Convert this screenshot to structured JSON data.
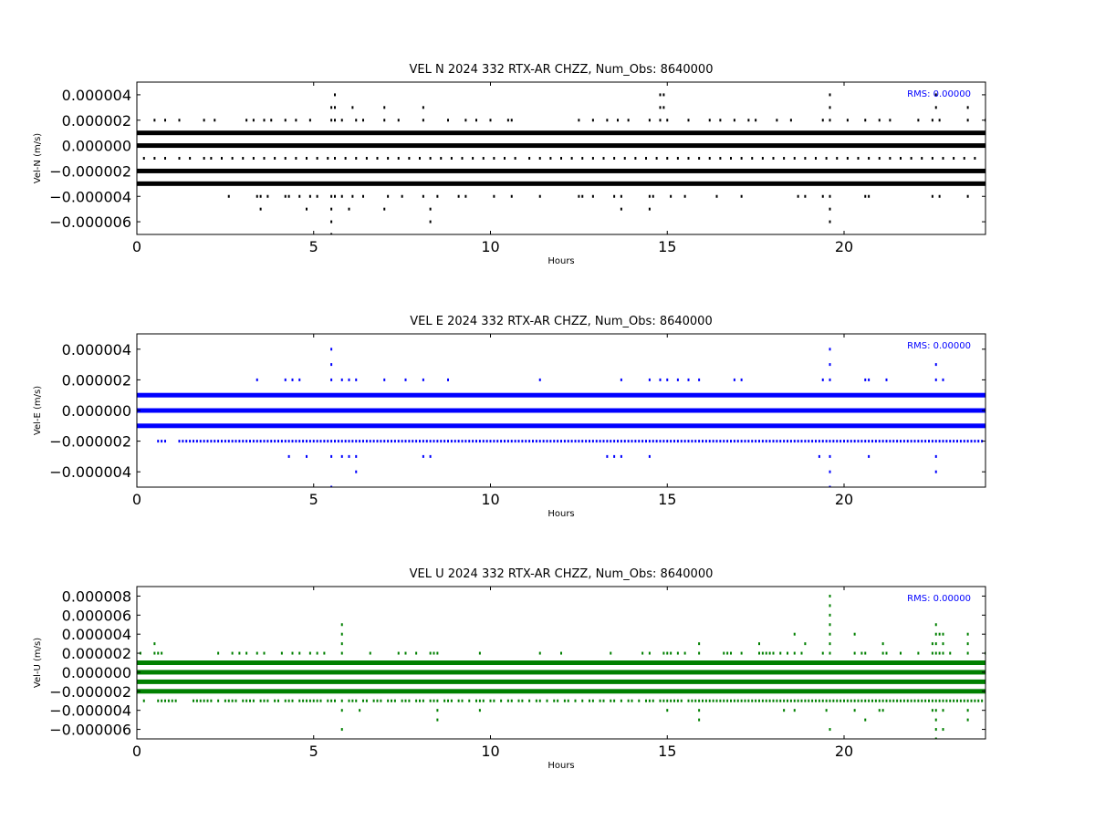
{
  "chart_data": [
    {
      "type": "scatter",
      "title": "VEL N 2024 332 RTX-AR  CHZZ, Num_Obs: 8640000",
      "xlabel": "Hours",
      "ylabel": "Vel-N (m/s)",
      "xlim": [
        0,
        24
      ],
      "ylim": [
        -7e-06,
        5e-06
      ],
      "xticks": [
        "0",
        "5",
        "10",
        "15",
        "20"
      ],
      "yticks": [
        "0.000004",
        "0.000002",
        "0.000000",
        "−0.000002",
        "−0.000004",
        "−0.000006"
      ],
      "color": "#000000",
      "rms_label": "RMS:  0.00000",
      "rms_color": "#0000ff",
      "grid": false,
      "dense_levels": [
        1e-06,
        0.0,
        -2e-06,
        -3e-06
      ],
      "sparse_levels": [
        {
          "y": -1e-06,
          "x": [
            0.2,
            0.5,
            0.8,
            1.2,
            1.5,
            1.9,
            2.1,
            2.4,
            2.7,
            3.0,
            3.3,
            3.6,
            3.9,
            4.2,
            4.5,
            4.8,
            5.1,
            5.4,
            5.6,
            5.9,
            6.2,
            6.5,
            6.8,
            7.1,
            7.4,
            7.7,
            8.0,
            8.3,
            8.6,
            8.9,
            9.2,
            9.5,
            9.8,
            10.1,
            10.4,
            10.7,
            11.1,
            11.4,
            11.7,
            12.0,
            12.3,
            12.6,
            12.9,
            13.2,
            13.5,
            13.8,
            14.1,
            14.4,
            14.7,
            15.0,
            15.3,
            15.6,
            15.9,
            16.2,
            16.5,
            16.8,
            17.1,
            17.4,
            17.7,
            18.0,
            18.3,
            18.6,
            18.9,
            19.2,
            19.5,
            19.8,
            20.1,
            20.4,
            20.7,
            21.0,
            21.3,
            21.6,
            21.9,
            22.2,
            22.5,
            22.8,
            23.1,
            23.4,
            23.7
          ]
        },
        {
          "y": 2e-06,
          "x": [
            0.5,
            0.8,
            1.2,
            1.9,
            2.2,
            3.1,
            3.3,
            3.6,
            3.8,
            4.2,
            4.5,
            4.9,
            5.5,
            5.6,
            5.8,
            6.2,
            6.4,
            7.0,
            7.4,
            8.1,
            8.8,
            9.3,
            9.6,
            10.0,
            10.5,
            10.6,
            12.5,
            12.9,
            13.3,
            13.6,
            13.9,
            14.5,
            14.8,
            15.0,
            15.6,
            16.2,
            16.5,
            16.9,
            17.3,
            17.5,
            18.1,
            18.5,
            19.4,
            19.6,
            20.1,
            20.6,
            21.0,
            21.3,
            22.1,
            22.5,
            22.7,
            23.5,
            24.0
          ]
        },
        {
          "y": 3e-06,
          "x": [
            5.5,
            5.6,
            6.1,
            7.0,
            8.1,
            14.8,
            14.9,
            19.6,
            22.6,
            23.5
          ]
        },
        {
          "y": 4e-06,
          "x": [
            5.6,
            14.8,
            14.9,
            19.6,
            22.6
          ]
        },
        {
          "y": -4e-06,
          "x": [
            2.6,
            3.4,
            3.5,
            3.7,
            4.2,
            4.3,
            4.6,
            4.9,
            5.1,
            5.5,
            5.6,
            5.8,
            6.1,
            6.4,
            7.1,
            7.5,
            8.1,
            8.5,
            9.1,
            9.3,
            10.1,
            10.6,
            11.4,
            12.5,
            12.6,
            12.9,
            13.5,
            13.7,
            14.5,
            14.6,
            15.1,
            15.5,
            16.4,
            17.1,
            18.7,
            18.9,
            19.4,
            19.6,
            20.6,
            20.7,
            22.5,
            22.7,
            23.5
          ]
        },
        {
          "y": -5e-06,
          "x": [
            3.5,
            4.8,
            5.5,
            6.0,
            7.0,
            8.3,
            13.7,
            14.5,
            19.6
          ]
        },
        {
          "y": -6e-06,
          "x": [
            5.5,
            8.3,
            19.6
          ]
        },
        {
          "y": -7e-06,
          "x": [
            5.5
          ]
        }
      ]
    },
    {
      "type": "scatter",
      "title": "VEL E 2024 332 RTX-AR  CHZZ, Num_Obs: 8640000",
      "xlabel": "Hours",
      "ylabel": "Vel-E (m/s)",
      "xlim": [
        0,
        24
      ],
      "ylim": [
        -5e-06,
        5e-06
      ],
      "xticks": [
        "0",
        "5",
        "10",
        "15",
        "20"
      ],
      "yticks": [
        "0.000004",
        "0.000002",
        "0.000000",
        "−0.000002",
        "−0.000004"
      ],
      "color": "#0000ff",
      "rms_label": "RMS:  0.00000",
      "rms_color": "#0000ff",
      "grid": false,
      "dense_levels": [
        1e-06,
        0.0,
        -1e-06
      ],
      "sparse_levels": [
        {
          "y": -2e-06,
          "x": [
            0.6,
            0.7,
            0.8,
            1.2,
            1.3,
            1.4,
            1.5,
            1.6,
            1.7,
            1.8,
            1.9,
            2.0,
            2.1,
            2.2,
            2.3,
            2.4,
            2.5,
            2.6,
            2.7,
            2.8,
            2.9,
            3.0,
            3.1,
            3.2,
            3.3,
            3.4,
            3.5,
            3.6,
            3.7,
            3.8,
            3.9,
            4.0,
            4.1,
            4.2,
            4.3,
            4.4,
            4.5,
            4.6,
            4.7,
            4.8,
            4.9,
            5.0,
            5.1,
            5.2,
            5.3,
            5.4,
            5.5,
            5.6,
            5.7,
            5.8,
            5.9,
            6.0,
            6.1,
            6.2,
            6.3,
            6.4,
            6.5,
            6.6,
            6.7,
            6.8,
            6.9,
            7.0,
            7.1,
            7.2,
            7.3,
            7.4,
            7.5,
            7.6,
            7.7,
            7.8,
            7.9,
            8.0,
            8.1,
            8.2,
            8.3,
            8.4,
            8.5,
            8.6,
            8.7,
            8.8,
            8.9,
            9.0,
            9.1,
            9.2,
            9.3,
            9.4,
            9.5,
            9.6,
            9.7,
            9.8,
            9.9,
            10.0,
            10.1,
            10.2,
            10.3,
            10.4,
            10.5,
            10.6,
            10.7,
            10.8,
            10.9,
            11.0,
            11.1,
            11.2,
            11.3,
            11.4,
            11.5,
            11.6,
            11.7,
            11.8,
            11.9,
            12.0,
            12.1,
            12.2,
            12.3,
            12.4,
            12.5,
            12.6,
            12.7,
            12.8,
            12.9,
            13.0,
            13.1,
            13.2,
            13.3,
            13.4,
            13.5,
            13.6,
            13.7,
            13.8,
            13.9,
            14.0,
            14.1,
            14.2,
            14.3,
            14.4,
            14.5,
            14.6,
            14.7,
            14.8,
            14.9,
            15.0,
            15.1,
            15.2,
            15.3,
            15.4,
            15.5,
            15.6,
            15.7,
            15.8,
            15.9,
            16.0,
            16.1,
            16.2,
            16.3,
            16.4,
            16.5,
            16.6,
            16.7,
            16.8,
            16.9,
            17.0,
            17.1,
            17.2,
            17.3,
            17.4,
            17.5,
            17.6,
            17.7,
            17.8,
            17.9,
            18.0,
            18.1,
            18.2,
            18.3,
            18.4,
            18.5,
            18.6,
            18.7,
            18.8,
            18.9,
            19.0,
            19.1,
            19.2,
            19.3,
            19.4,
            19.5,
            19.6,
            19.7,
            19.8,
            19.9,
            20.0,
            20.1,
            20.2,
            20.3,
            20.4,
            20.5,
            20.6,
            20.7,
            20.8,
            20.9,
            21.0,
            21.1,
            21.2,
            21.3,
            21.4,
            21.5,
            21.6,
            21.7,
            21.8,
            21.9,
            22.0,
            22.1,
            22.2,
            22.3,
            22.4,
            22.5,
            22.6,
            22.7,
            22.8,
            22.9,
            23.0,
            23.1,
            23.2,
            23.3,
            23.4,
            23.5,
            23.6,
            23.7,
            23.8,
            23.9
          ]
        },
        {
          "y": 2e-06,
          "x": [
            3.4,
            4.2,
            4.4,
            4.6,
            5.5,
            5.8,
            6.0,
            6.2,
            7.0,
            7.6,
            8.1,
            8.8,
            11.4,
            13.7,
            14.5,
            14.8,
            15.0,
            15.3,
            15.6,
            15.9,
            16.9,
            17.1,
            19.4,
            19.6,
            20.6,
            20.7,
            21.2,
            22.6,
            22.8
          ]
        },
        {
          "y": 3e-06,
          "x": [
            5.5,
            19.6,
            22.6
          ]
        },
        {
          "y": 4e-06,
          "x": [
            5.5,
            19.6
          ]
        },
        {
          "y": -3e-06,
          "x": [
            4.3,
            4.8,
            5.5,
            5.8,
            6.0,
            6.2,
            8.1,
            8.3,
            13.3,
            13.5,
            13.7,
            14.5,
            19.3,
            19.6,
            20.7,
            22.6
          ]
        },
        {
          "y": -4e-06,
          "x": [
            6.2,
            19.6,
            22.6
          ]
        },
        {
          "y": -5e-06,
          "x": [
            5.5,
            19.6
          ]
        }
      ]
    },
    {
      "type": "scatter",
      "title": "VEL U 2024 332 RTX-AR  CHZZ, Num_Obs: 8640000",
      "xlabel": "Hours",
      "ylabel": "Vel-U (m/s)",
      "xlim": [
        0,
        24
      ],
      "ylim": [
        -7e-06,
        9e-06
      ],
      "xticks": [
        "0",
        "5",
        "10",
        "15",
        "20"
      ],
      "yticks": [
        "0.000008",
        "0.000006",
        "0.000004",
        "0.000002",
        "0.000000",
        "−0.000002",
        "−0.000004",
        "−0.000006"
      ],
      "color": "#008000",
      "rms_label": "RMS:  0.00000",
      "rms_color": "#0000ff",
      "grid": false,
      "dense_levels": [
        1e-06,
        0.0,
        -1e-06,
        -2e-06
      ],
      "sparse_levels": [
        {
          "y": -3e-06,
          "x": [
            0.2,
            0.6,
            0.7,
            0.8,
            0.9,
            1.0,
            1.1,
            1.6,
            1.7,
            1.8,
            1.9,
            2.0,
            2.1,
            2.3,
            2.5,
            2.6,
            2.7,
            2.8,
            3.0,
            3.1,
            3.2,
            3.3,
            3.5,
            3.6,
            3.7,
            3.9,
            4.0,
            4.2,
            4.3,
            4.4,
            4.6,
            4.7,
            4.8,
            4.9,
            5.0,
            5.1,
            5.2,
            5.4,
            5.5,
            5.6,
            5.8,
            6.0,
            6.1,
            6.2,
            6.4,
            6.5,
            6.7,
            6.8,
            6.9,
            7.1,
            7.2,
            7.3,
            7.5,
            7.6,
            7.7,
            7.9,
            8.0,
            8.1,
            8.3,
            8.4,
            8.5,
            8.7,
            8.8,
            8.9,
            9.1,
            9.2,
            9.4,
            9.6,
            9.7,
            9.8,
            10.0,
            10.1,
            10.3,
            10.5,
            10.6,
            10.8,
            10.9,
            11.1,
            11.3,
            11.4,
            11.6,
            11.8,
            11.9,
            12.1,
            12.2,
            12.4,
            12.6,
            12.8,
            12.9,
            13.1,
            13.2,
            13.4,
            13.5,
            13.7,
            13.9,
            14.0,
            14.2,
            14.4,
            14.5,
            14.6,
            14.8,
            14.9,
            15.0,
            15.1,
            15.2,
            15.3,
            15.4,
            15.6,
            15.7,
            15.8,
            15.9,
            16.0,
            16.1,
            16.2,
            16.3,
            16.4,
            16.5,
            16.6,
            16.7,
            16.8,
            16.9,
            17.0,
            17.1,
            17.2,
            17.3,
            17.4,
            17.5,
            17.6,
            17.7,
            17.8,
            17.9,
            18.0,
            18.1,
            18.2,
            18.3,
            18.4,
            18.5,
            18.6,
            18.7,
            18.8,
            18.9,
            19.0,
            19.1,
            19.2,
            19.3,
            19.4,
            19.5,
            19.6,
            19.7,
            19.8,
            19.9,
            20.0,
            20.1,
            20.2,
            20.3,
            20.4,
            20.5,
            20.6,
            20.7,
            20.8,
            20.9,
            21.0,
            21.1,
            21.2,
            21.3,
            21.4,
            21.5,
            21.6,
            21.7,
            21.8,
            21.9,
            22.0,
            22.1,
            22.2,
            22.3,
            22.4,
            22.5,
            22.6,
            22.7,
            22.8,
            22.9,
            23.0,
            23.1,
            23.2,
            23.3,
            23.4,
            23.5,
            23.6,
            23.7,
            23.8,
            23.9
          ]
        },
        {
          "y": 2e-06,
          "x": [
            0.1,
            0.5,
            0.6,
            0.7,
            2.3,
            2.7,
            2.9,
            3.1,
            3.4,
            3.6,
            4.1,
            4.4,
            4.6,
            4.9,
            5.1,
            5.3,
            5.8,
            6.6,
            7.4,
            7.6,
            7.9,
            8.3,
            8.4,
            8.5,
            9.7,
            11.4,
            12.0,
            13.4,
            14.3,
            14.5,
            14.9,
            15.0,
            15.1,
            15.3,
            15.5,
            15.9,
            16.6,
            16.7,
            16.8,
            17.1,
            17.6,
            17.7,
            17.8,
            17.9,
            18.0,
            18.2,
            18.4,
            18.6,
            18.8,
            19.4,
            19.6,
            20.3,
            20.5,
            20.6,
            21.1,
            21.2,
            21.6,
            22.1,
            22.5,
            22.6,
            22.7,
            22.8,
            23.0,
            23.5,
            24.0
          ]
        },
        {
          "y": 3e-06,
          "x": [
            0.5,
            5.8,
            15.9,
            17.6,
            18.9,
            19.6,
            21.1,
            22.5,
            22.6,
            22.8,
            23.5
          ]
        },
        {
          "y": 4e-06,
          "x": [
            5.8,
            18.6,
            19.6,
            20.3,
            22.6,
            22.7,
            22.8,
            23.5
          ]
        },
        {
          "y": 5e-06,
          "x": [
            5.8,
            19.6,
            22.6
          ]
        },
        {
          "y": 6e-06,
          "x": [
            19.6
          ]
        },
        {
          "y": 7e-06,
          "x": [
            19.6
          ]
        },
        {
          "y": 8e-06,
          "x": [
            19.6
          ]
        },
        {
          "y": -4e-06,
          "x": [
            5.8,
            6.3,
            8.5,
            9.7,
            15.0,
            15.9,
            18.3,
            18.6,
            19.5,
            20.3,
            21.0,
            21.1,
            22.5,
            22.6,
            22.8,
            23.5
          ]
        },
        {
          "y": -5e-06,
          "x": [
            8.5,
            15.9,
            20.6,
            22.6,
            23.5
          ]
        },
        {
          "y": -6e-06,
          "x": [
            5.8,
            19.6,
            22.6,
            22.8
          ]
        },
        {
          "y": -7e-06,
          "x": [
            22.6
          ]
        }
      ]
    }
  ]
}
